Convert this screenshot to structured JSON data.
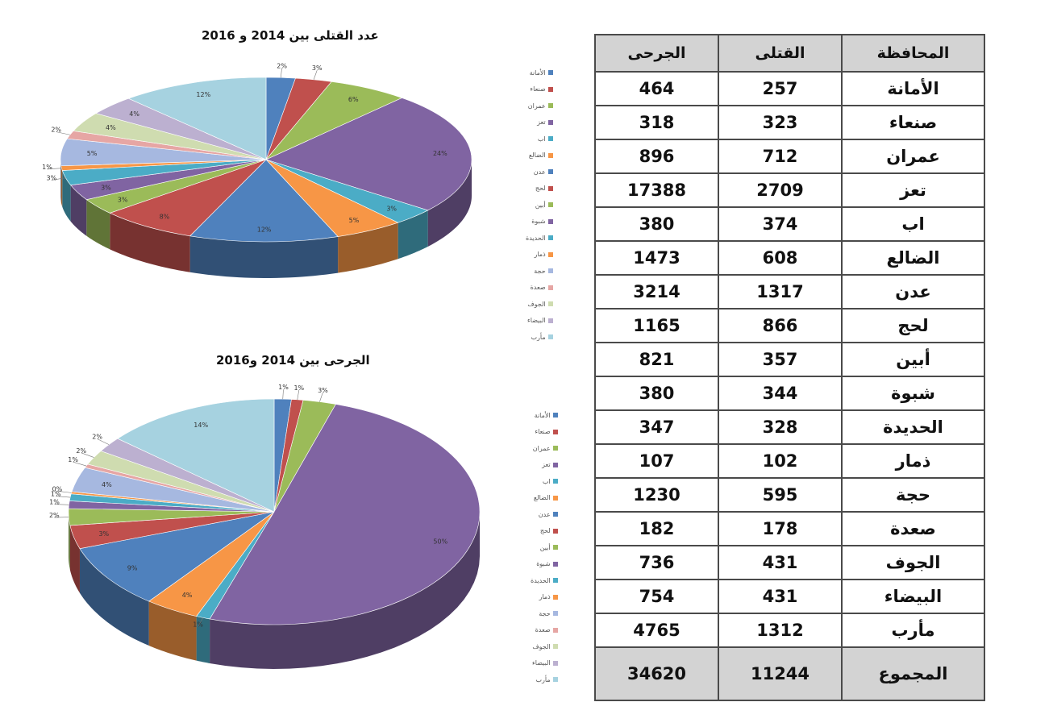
{
  "charts": {
    "killed_title": "عدد القتلى بين 2014 و 2016",
    "injured_title": "الجرحى بين 2014 و2016"
  },
  "table": {
    "headers": {
      "governorate": "المحافظة",
      "killed": "القتلى",
      "injured": "الجرحى"
    },
    "rows": [
      {
        "gov": "الأمانة",
        "killed": "257",
        "injured": "464"
      },
      {
        "gov": "صنعاء",
        "killed": "323",
        "injured": "318"
      },
      {
        "gov": "عمران",
        "killed": "712",
        "injured": "896"
      },
      {
        "gov": "تعز",
        "killed": "2709",
        "injured": "17388"
      },
      {
        "gov": "اب",
        "killed": "374",
        "injured": "380"
      },
      {
        "gov": "الضالع",
        "killed": "608",
        "injured": "1473"
      },
      {
        "gov": "عدن",
        "killed": "1317",
        "injured": "3214"
      },
      {
        "gov": "لحج",
        "killed": "866",
        "injured": "1165"
      },
      {
        "gov": "أبين",
        "killed": "357",
        "injured": "821"
      },
      {
        "gov": "شبوة",
        "killed": "344",
        "injured": "380"
      },
      {
        "gov": "الحديدة",
        "killed": "328",
        "injured": "347"
      },
      {
        "gov": "ذمار",
        "killed": "102",
        "injured": "107"
      },
      {
        "gov": "حجة",
        "killed": "595",
        "injured": "1230"
      },
      {
        "gov": "صعدة",
        "killed": "178",
        "injured": "182"
      },
      {
        "gov": "الجوف",
        "killed": "431",
        "injured": "736"
      },
      {
        "gov": "البيضاء",
        "killed": "431",
        "injured": "754"
      },
      {
        "gov": "مأرب",
        "killed": "1312",
        "injured": "4765"
      }
    ],
    "total": {
      "label": "المجموع",
      "killed": "11244",
      "injured": "34620"
    }
  },
  "chart_data": [
    {
      "type": "pie",
      "title": "عدد القتلى بين 2014 و 2016",
      "categories": [
        "الأمانة",
        "صنعاء",
        "عمران",
        "تعز",
        "اب",
        "الضالع",
        "عدن",
        "لحج",
        "أبين",
        "شبوة",
        "الحديدة",
        "ذمار",
        "حجة",
        "صعدة",
        "الجوف",
        "البيضاء",
        "مأرب"
      ],
      "values": [
        257,
        323,
        712,
        2709,
        374,
        608,
        1317,
        866,
        357,
        344,
        328,
        102,
        595,
        178,
        431,
        431,
        1312
      ],
      "labels": [
        "2%",
        "3%",
        "6%",
        "24%",
        "3%",
        "5%",
        "12%",
        "8%",
        "3%",
        "3%",
        "3%",
        "1%",
        "5%",
        "2%",
        "4%",
        "4%",
        "12%"
      ],
      "legend": "right"
    },
    {
      "type": "pie",
      "title": "الجرحى بين 2014 و2016",
      "categories": [
        "الأمانة",
        "صنعاء",
        "عمران",
        "تعز",
        "اب",
        "الضالع",
        "عدن",
        "لحج",
        "أبين",
        "شبوة",
        "الحديدة",
        "ذمار",
        "حجة",
        "صعدة",
        "الجوف",
        "البيضاء",
        "مأرب"
      ],
      "values": [
        464,
        318,
        896,
        17388,
        380,
        1473,
        3214,
        1165,
        821,
        380,
        347,
        107,
        1230,
        182,
        736,
        754,
        4765
      ],
      "labels": [
        "1%",
        "1%",
        "3%",
        "50%",
        "1%",
        "4%",
        "9%",
        "3%",
        "2%",
        "1%",
        "1%",
        "0%",
        "4%",
        "1%",
        "2%",
        "2%",
        "14%"
      ],
      "legend": "right"
    }
  ],
  "colors": [
    "#4f81bd",
    "#c0504d",
    "#9bbb59",
    "#8064a2",
    "#4bacc6",
    "#f79646",
    "#4f81bd",
    "#c0504d",
    "#9bbb59",
    "#8064a2",
    "#4bacc6",
    "#f79646",
    "#a6b8e0",
    "#e6a6a4",
    "#cfdcb0",
    "#bcb0d0",
    "#a6d2e0"
  ]
}
